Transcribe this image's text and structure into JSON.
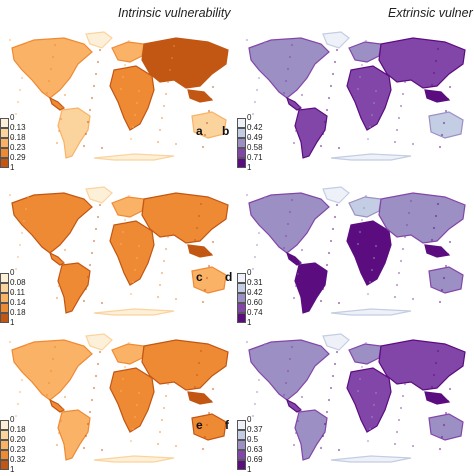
{
  "column_titles": {
    "left": "Intrinsic vulnerability",
    "right": "Extrinsic vulner"
  },
  "colors": {
    "intrinsic": [
      "#fdf0d9",
      "#fbd39d",
      "#f9b266",
      "#ef8a34",
      "#c25613"
    ],
    "extrinsic": [
      "#eef2f8",
      "#c3cde3",
      "#9c8fc4",
      "#8246a8",
      "#5b0d80"
    ]
  },
  "panels": [
    {
      "letter": "a",
      "ticks": [
        "0",
        "0.13",
        "0.18",
        "0.23",
        "0.29",
        "1"
      ],
      "scheme": "intrinsic"
    },
    {
      "letter": "b",
      "ticks": [
        "0",
        "0.42",
        "0.49",
        "0.58",
        "0.71",
        "1"
      ],
      "scheme": "extrinsic",
      "letter_text": "b"
    },
    {
      "letter": "c",
      "ticks": [
        "0",
        "0.08",
        "0.11",
        "0.14",
        "0.18",
        "1"
      ],
      "scheme": "intrinsic"
    },
    {
      "letter": "d",
      "ticks": [
        "0",
        "0.31",
        "0.42",
        "0.60",
        "0.74",
        "1"
      ],
      "scheme": "extrinsic"
    },
    {
      "letter": "e",
      "ticks": [
        "0",
        "0.18",
        "0.20",
        "0.23",
        "0.32",
        "1"
      ],
      "scheme": "intrinsic"
    },
    {
      "letter": "f",
      "ticks": [
        "0",
        "0.37",
        "0.5",
        "0.63",
        "0.69",
        "1"
      ],
      "scheme": "extrinsic"
    }
  ]
}
